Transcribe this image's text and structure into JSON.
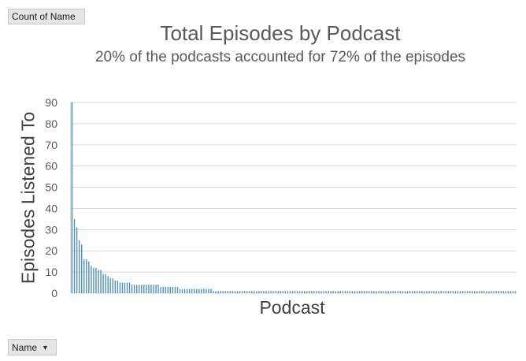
{
  "pivot": {
    "value_field": "Count of Name",
    "row_field": "Name"
  },
  "chart_data": {
    "type": "bar",
    "title": "Total Episodes by Podcast",
    "subtitle": "20% of the podcasts accounted for 72% of the episodes",
    "xlabel": "Podcast",
    "ylabel": "Episodes Listened To",
    "ylim": [
      0,
      90
    ],
    "yticks": [
      0,
      10,
      20,
      30,
      40,
      50,
      60,
      70,
      80,
      90
    ],
    "grid": true,
    "bar_color": "#4f8fb8",
    "values": [
      90,
      35,
      31,
      25,
      23,
      16,
      16,
      15,
      13,
      12,
      12,
      11,
      11,
      9,
      9,
      8,
      7,
      7,
      6,
      6,
      5,
      5,
      5,
      5,
      5,
      4,
      4,
      4,
      4,
      4,
      4,
      4,
      4,
      4,
      4,
      4,
      4,
      3,
      3,
      3,
      3,
      3,
      3,
      3,
      3,
      2,
      2,
      2,
      2,
      2,
      2,
      2,
      2,
      2,
      2,
      2,
      2,
      2,
      2,
      1,
      1,
      1,
      1,
      1,
      1,
      1,
      1,
      1,
      1,
      1,
      1,
      1,
      1,
      1,
      1,
      1,
      1,
      1,
      1,
      1,
      1,
      1,
      1,
      1,
      1,
      1,
      1,
      1,
      1,
      1,
      1,
      1,
      1,
      1,
      1,
      1,
      1,
      1,
      1,
      1,
      1,
      1,
      1,
      1,
      1,
      1,
      1,
      1,
      1,
      1,
      1,
      1,
      1,
      1,
      1,
      1,
      1,
      1,
      1,
      1,
      1,
      1,
      1,
      1,
      1,
      1,
      1,
      1,
      1,
      1,
      1,
      1,
      1,
      1,
      1,
      1,
      1,
      1,
      1,
      1,
      1,
      1,
      1,
      1,
      1,
      1,
      1,
      1,
      1,
      1,
      1,
      1,
      1,
      1,
      1,
      1,
      1,
      1,
      1,
      1,
      1,
      1,
      1,
      1,
      1,
      1,
      1,
      1,
      1,
      1,
      1,
      1,
      1,
      1,
      1,
      1,
      1,
      1,
      1,
      1,
      1,
      1,
      1,
      1,
      1,
      1
    ]
  }
}
